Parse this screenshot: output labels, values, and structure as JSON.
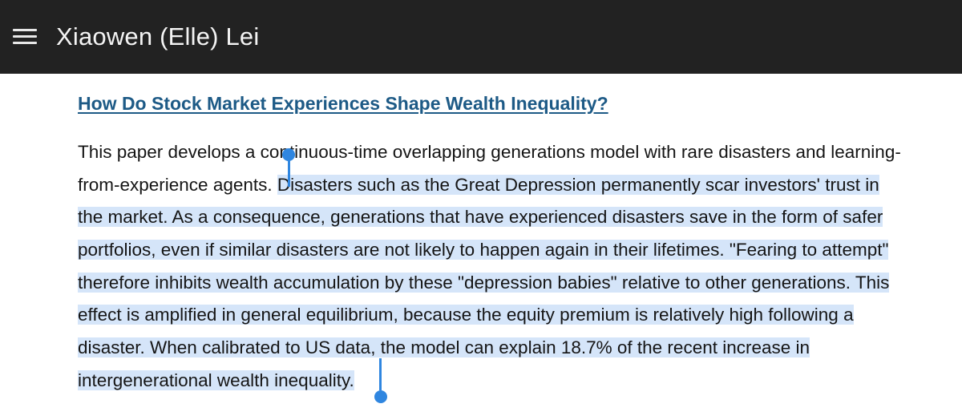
{
  "header": {
    "menu_icon": "hamburger-menu-icon",
    "site_title": "Xiaowen (Elle) Lei"
  },
  "paper": {
    "title": "How Do Stock Market Experiences Shape Wealth Inequality?",
    "abstract_lines": [
      {
        "plain": "This paper develops a continuous-time overlapping generations model with rare disasters and learning-",
        "selected": ""
      },
      {
        "plain": "from-experience agents. ",
        "selected": "Disasters such as the Great Depression permanently scar investors' trust in"
      },
      {
        "plain": "",
        "selected": "the market. As a consequence, generations that have experienced disasters save in the form of safer"
      },
      {
        "plain": "",
        "selected": "portfolios, even if similar disasters are not likely to happen again in their lifetimes. \"Fearing to attempt\""
      },
      {
        "plain": "",
        "selected": "therefore inhibits wealth accumulation by these \"depression babies\"  relative to other generations. This"
      },
      {
        "plain": "",
        "selected": "effect is amplified in general equilibrium, because the equity premium is relatively high following a"
      },
      {
        "plain": "",
        "selected": "disaster. When calibrated to US data, the model can explain  18.7% of the recent increase in"
      },
      {
        "plain": "",
        "selected": "intergenerational wealth inequality."
      }
    ]
  },
  "selection": {
    "highlight_color": "#d5e5f9",
    "handle_color": "#2f86e0"
  }
}
